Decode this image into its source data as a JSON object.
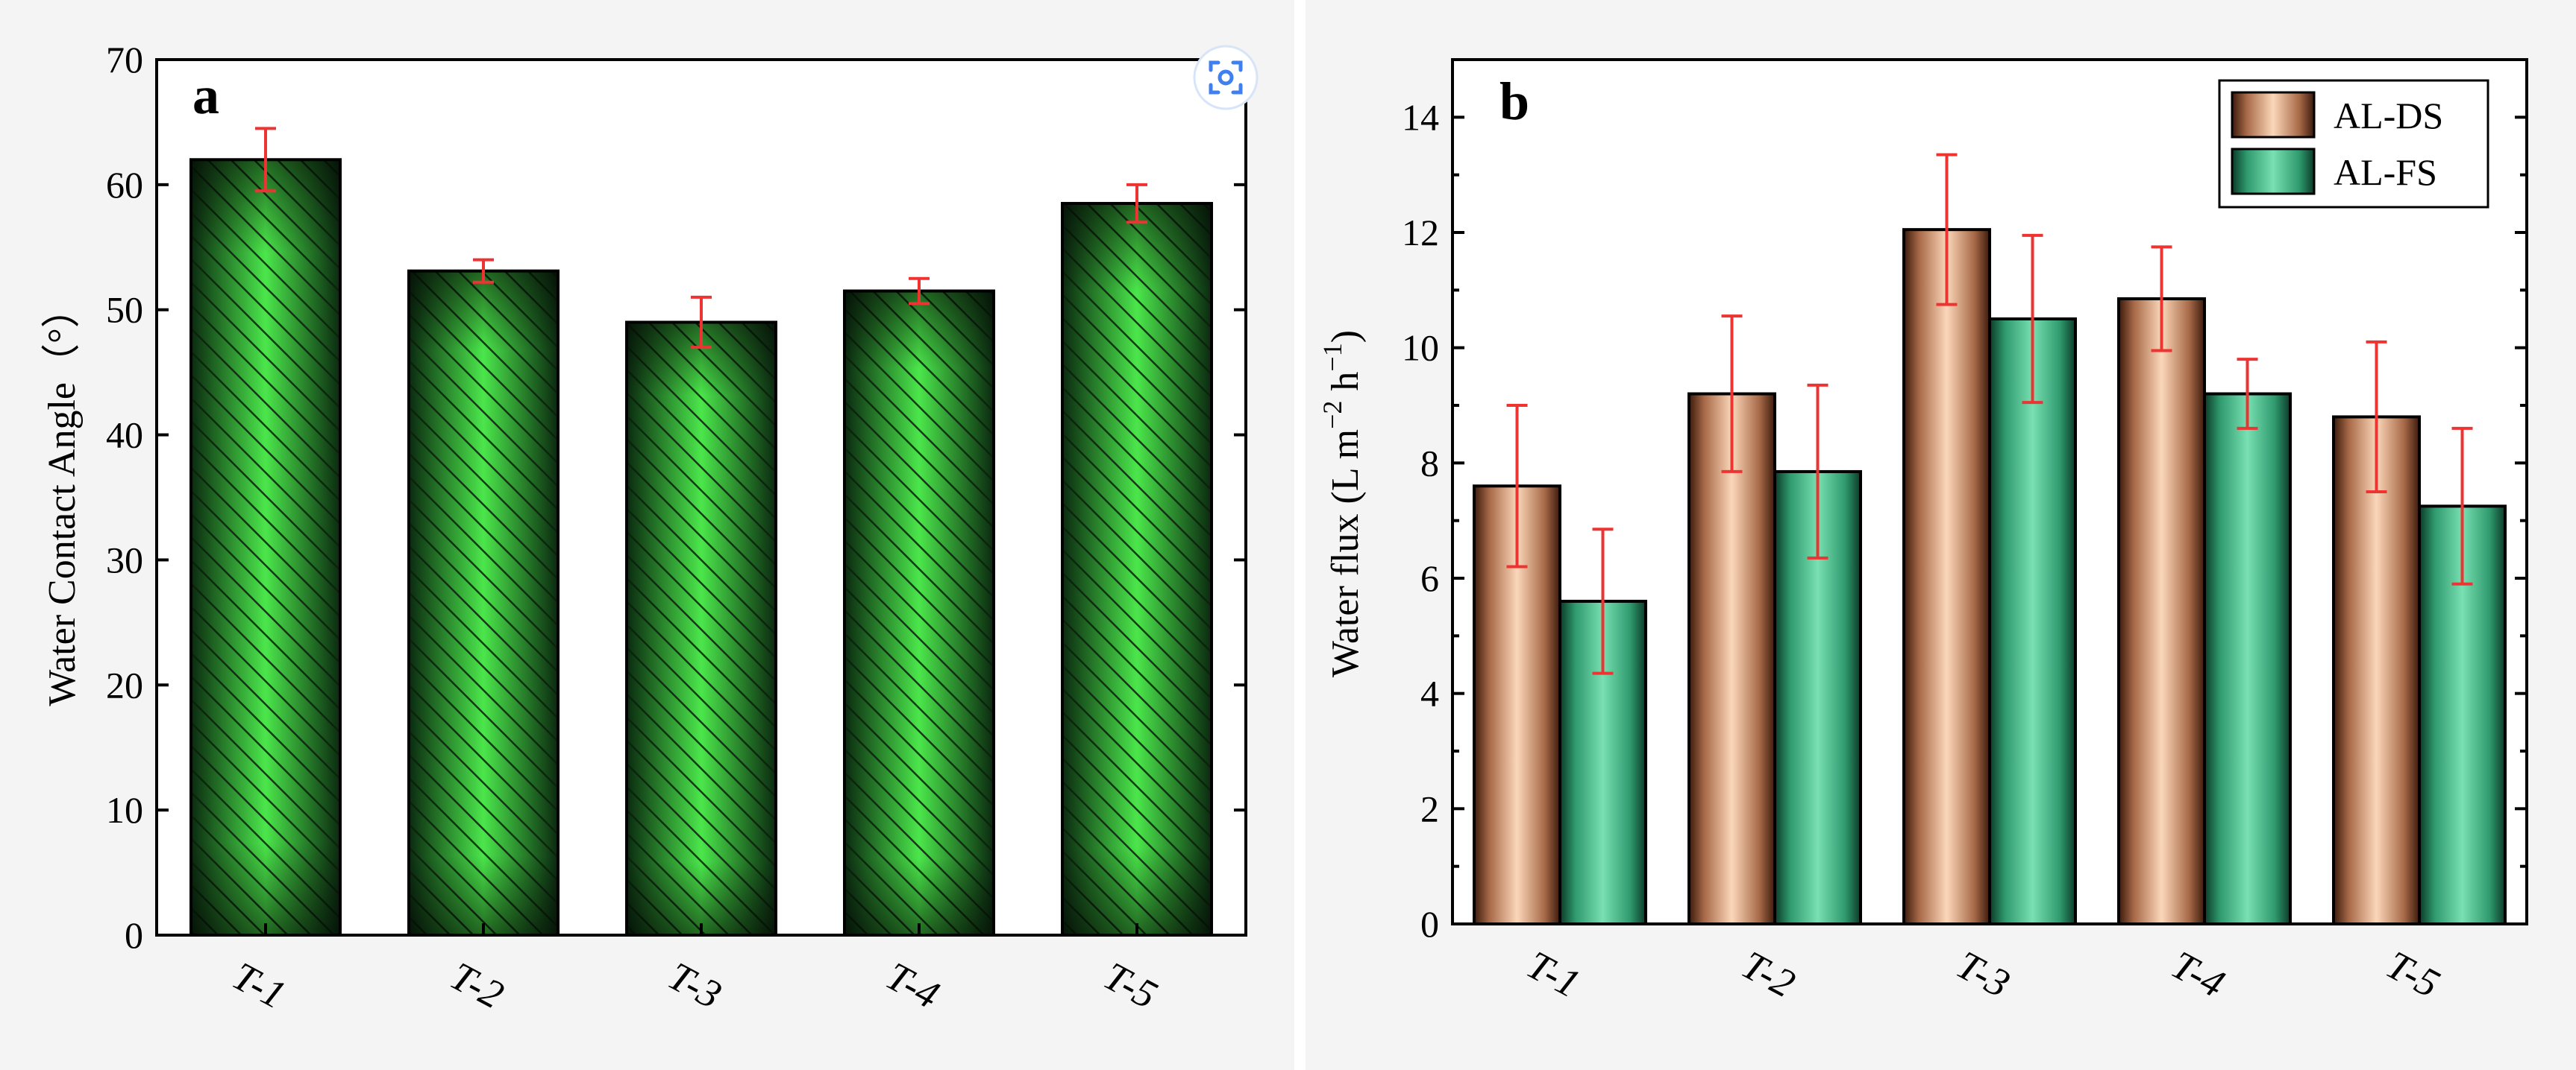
{
  "colors": {
    "green_dark": "#0b2a10",
    "green_light": "#4be64b",
    "orange_dark": "#3a1a0c",
    "orange_light": "#fbd7b9",
    "teal_dark": "#0b3a28",
    "teal_light": "#78e0b2",
    "error": "#ee3333"
  },
  "scan_icon": "scan-icon",
  "chart_data": [
    {
      "panel": "a",
      "type": "bar",
      "categories": [
        "T-1",
        "T-2",
        "T-3",
        "T-4",
        "T-5"
      ],
      "series": [
        {
          "name": "Water Contact Angle",
          "values": [
            62.0,
            53.1,
            49.0,
            51.5,
            58.5
          ],
          "errors": [
            2.5,
            0.9,
            2.0,
            1.0,
            1.5
          ]
        }
      ],
      "ylabel": "Water Contact Angle（°）",
      "xlabel": "",
      "ylim": [
        0,
        70
      ],
      "yticks": [
        "0",
        "10",
        "20",
        "30",
        "40",
        "50",
        "60",
        "70"
      ],
      "legend": null
    },
    {
      "panel": "b",
      "type": "bar",
      "categories": [
        "T-1",
        "T-2",
        "T-3",
        "T-4",
        "T-5"
      ],
      "series": [
        {
          "name": "AL-DS",
          "values": [
            7.6,
            9.2,
            12.05,
            10.85,
            8.8
          ],
          "errors": [
            1.4,
            1.35,
            1.3,
            0.9,
            1.3
          ]
        },
        {
          "name": "AL-FS",
          "values": [
            5.6,
            7.85,
            10.5,
            9.2,
            7.25
          ],
          "errors": [
            1.25,
            1.5,
            1.45,
            0.6,
            1.35
          ]
        }
      ],
      "ylabel_main": "Water flux (L m",
      "ylabel_sup1": "−2",
      "ylabel_mid": " h",
      "ylabel_sup2": "−1",
      "ylabel_end": ")",
      "xlabel": "",
      "ylim": [
        0,
        15
      ],
      "yticks": [
        "0",
        "2",
        "4",
        "6",
        "8",
        "10",
        "12",
        "14"
      ],
      "legend": "top-right"
    }
  ]
}
